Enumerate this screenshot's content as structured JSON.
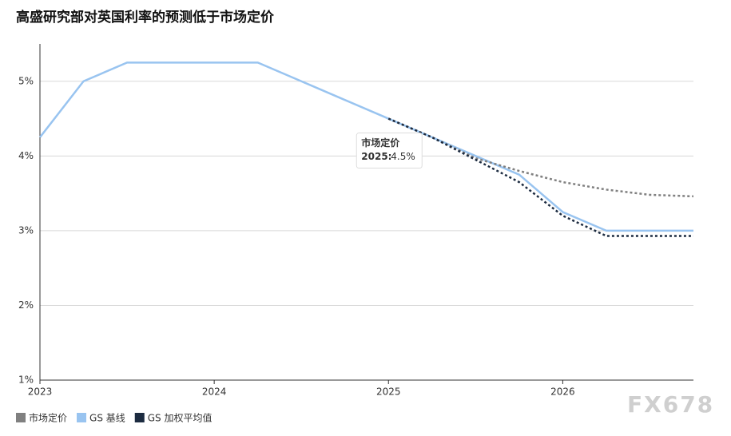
{
  "chart_data": {
    "type": "line",
    "title": "高盛研究部对英国利率的预测低于市场定价",
    "x": [
      2023,
      2023.25,
      2023.5,
      2023.75,
      2024,
      2024.25,
      2024.5,
      2024.75,
      2025,
      2025.25,
      2025.5,
      2025.75,
      2026,
      2026.25,
      2026.5,
      2026.75
    ],
    "series": [
      {
        "name": "市场定价",
        "color": "#808080",
        "dash": "3,3",
        "values": [
          null,
          null,
          null,
          null,
          null,
          null,
          null,
          null,
          4.5,
          4.25,
          3.97,
          3.8,
          3.65,
          3.55,
          3.48,
          3.46
        ]
      },
      {
        "name": "GS 基线",
        "color": "#99c4f0",
        "dash": "none",
        "values": [
          4.25,
          5,
          5.25,
          5.25,
          5.25,
          5.25,
          5,
          4.75,
          4.5,
          4.25,
          4,
          3.75,
          3.25,
          3,
          3,
          3
        ]
      },
      {
        "name": "GS 加权平均值",
        "color": "#1c2b40",
        "dash": "3,3",
        "values": [
          null,
          null,
          null,
          null,
          null,
          null,
          null,
          null,
          4.5,
          4.25,
          3.95,
          3.65,
          3.2,
          2.93,
          2.93,
          2.93
        ]
      }
    ],
    "xlim": [
      2023,
      2026.75
    ],
    "xticks": [
      2023,
      2024,
      2025,
      2026
    ],
    "ylim": [
      1,
      5.5
    ],
    "yticks": [
      {
        "value": 1,
        "label": "1%"
      },
      {
        "value": 2,
        "label": "2%"
      },
      {
        "value": 3,
        "label": "3%"
      },
      {
        "value": 4,
        "label": "4%"
      },
      {
        "value": 5,
        "label": "5%"
      }
    ],
    "grid": true,
    "tooltip": {
      "title": "市场定价",
      "label": "2025:",
      "value_label": "4.5%"
    },
    "watermark": "FX678"
  }
}
